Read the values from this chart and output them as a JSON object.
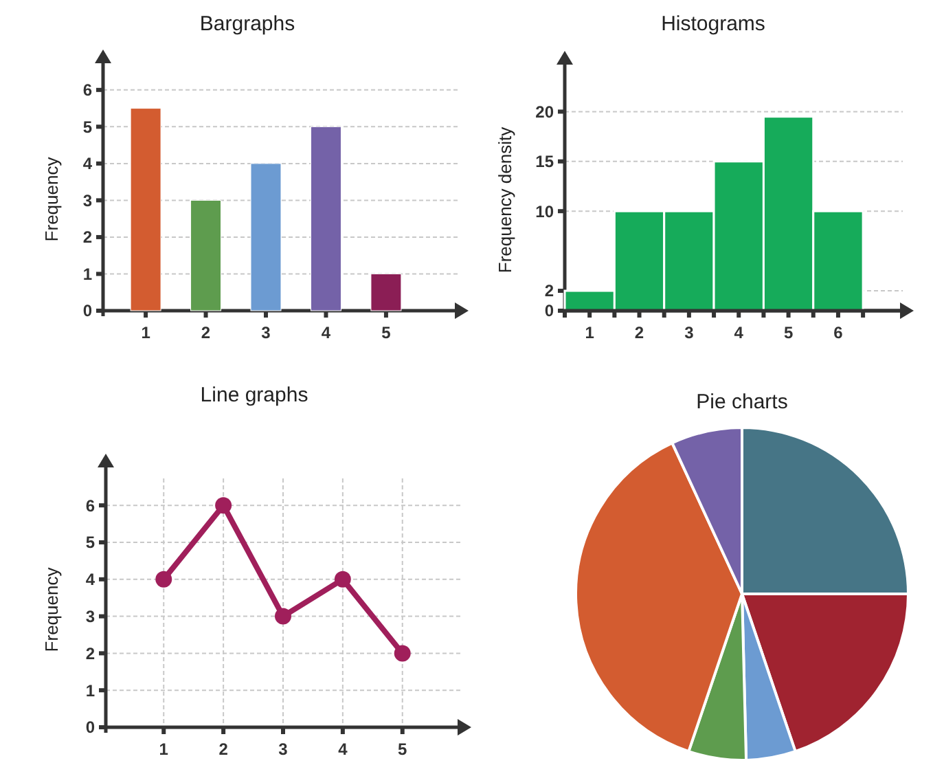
{
  "chart_data": [
    {
      "type": "bar",
      "title": "Bargraphs",
      "ylabel": "Frequency",
      "categories": [
        "1",
        "2",
        "3",
        "4",
        "5"
      ],
      "values": [
        5.5,
        3,
        4,
        5,
        1
      ],
      "colors": [
        "#d35c30",
        "#5e9c4e",
        "#6c9bd2",
        "#7462a8",
        "#8b1e55"
      ],
      "ylim": [
        0,
        6.8
      ],
      "yticks": [
        0,
        1,
        2,
        3,
        4,
        5,
        6
      ],
      "grid": "y"
    },
    {
      "type": "histogram",
      "title": "Histograms",
      "ylabel": "Frequency density",
      "bins": [
        0.5,
        1.5,
        2.5,
        3.5,
        4.5,
        5.5,
        6.5
      ],
      "values": [
        2,
        10,
        10,
        15,
        19.5,
        10
      ],
      "color": "#16ab5a",
      "xlim": [
        0.5,
        7.3
      ],
      "xticks": [
        {
          "value": 0.5,
          "label": null
        },
        1,
        {
          "value": 1.5,
          "label": null
        },
        2,
        {
          "value": 2.5,
          "label": null
        },
        3,
        {
          "value": 3.5,
          "label": null
        },
        4,
        {
          "value": 4.5,
          "label": null
        },
        5,
        {
          "value": 5.5,
          "label": null
        },
        6,
        {
          "value": 6.5,
          "label": null
        }
      ],
      "ylim": [
        0,
        25
      ],
      "yticks": [
        0,
        2,
        10,
        15,
        20
      ],
      "grid": "y"
    },
    {
      "type": "line",
      "title": "Line graphs",
      "ylabel": "Frequency",
      "categories": [
        "1",
        "2",
        "3",
        "4",
        "5"
      ],
      "values": [
        4,
        6,
        3,
        4,
        2
      ],
      "color": "#a01f5b",
      "marker": "circle",
      "ylim": [
        0,
        7.1
      ],
      "yticks": [
        0,
        1,
        2,
        3,
        4,
        5,
        6
      ],
      "grid": true
    },
    {
      "type": "pie",
      "title": "Pie charts",
      "categories": [
        null,
        null,
        null,
        null,
        null,
        null
      ],
      "values": [
        25,
        19.8,
        4.8,
        5.6,
        37.9,
        6.9
      ],
      "colors": [
        "#467586",
        "#a02330",
        "#6c9bd2",
        "#5e9c4e",
        "#d35c30",
        "#7462a8"
      ]
    }
  ]
}
